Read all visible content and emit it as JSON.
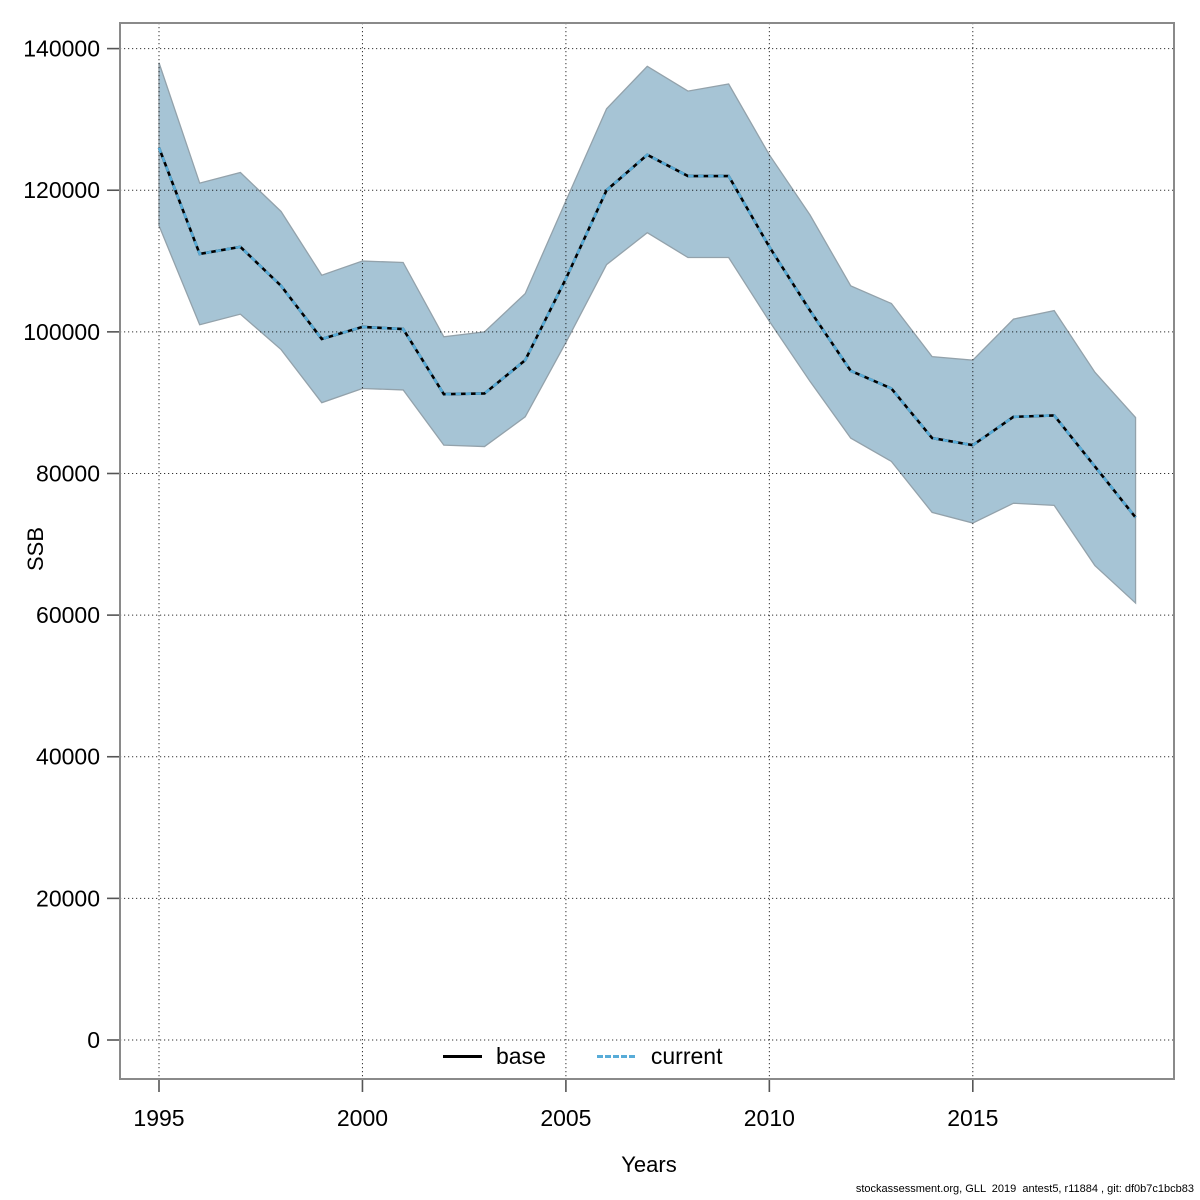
{
  "page": {
    "background": "#ffffff"
  },
  "axes": {
    "x_label": "Years",
    "y_label": "SSB"
  },
  "legend": {
    "items": [
      {
        "label": "base",
        "style": "solid",
        "color": "#000000"
      },
      {
        "label": "current",
        "style": "dotted",
        "color": "#58acd8"
      }
    ]
  },
  "footer": {
    "credit": "stockassessment.org, GLL  2019  antest5, r11884 , git: df0b7c1bcb83"
  },
  "chart_data": {
    "type": "line",
    "title": "",
    "xlabel": "Years",
    "ylabel": "SSB",
    "grid": "dotted",
    "legend_position": "bottom-center-inside",
    "xlim": [
      1994.05,
      2019.95
    ],
    "ylim": [
      -5500,
      143600
    ],
    "x": [
      1995,
      1996,
      1997,
      1998,
      1999,
      2000,
      2001,
      2002,
      2003,
      2004,
      2005,
      2006,
      2007,
      2008,
      2009,
      2010,
      2011,
      2012,
      2013,
      2014,
      2015,
      2016,
      2017,
      2018,
      2019
    ],
    "series": [
      {
        "name": "base",
        "style": "solid",
        "color": "#000000",
        "values": [
          126000,
          111000,
          112000,
          106500,
          99000,
          100700,
          100400,
          91200,
          91300,
          96000,
          107500,
          120000,
          125000,
          122000,
          122000,
          112000,
          103000,
          94500,
          92000,
          85000,
          84000,
          88000,
          88200,
          81000,
          73800
        ]
      },
      {
        "name": "current",
        "style": "dotted",
        "color": "#58acd8",
        "values": [
          126000,
          111000,
          112000,
          106500,
          99000,
          100700,
          100400,
          91200,
          91300,
          96000,
          107500,
          120000,
          125000,
          122000,
          122000,
          112000,
          103000,
          94500,
          92000,
          85000,
          84000,
          88000,
          88200,
          81000,
          73800
        ]
      }
    ],
    "band": {
      "name": "confidence-interval",
      "fill": "#a6c4d5",
      "border": "#93a2ab",
      "lower": [
        115000,
        101000,
        102500,
        97500,
        90000,
        92000,
        91800,
        84000,
        83800,
        88000,
        98500,
        109500,
        114000,
        110500,
        110500,
        101500,
        93000,
        85000,
        81700,
        74500,
        73000,
        75800,
        75500,
        67000,
        61700
      ],
      "upper": [
        138000,
        121000,
        122500,
        117000,
        108000,
        110000,
        109800,
        99300,
        100000,
        105400,
        118500,
        131500,
        137500,
        134000,
        135000,
        125000,
        116500,
        106500,
        104000,
        96500,
        96000,
        101800,
        103000,
        94300,
        87900
      ]
    },
    "x_ticks": {
      "values": [
        1995,
        2000,
        2005,
        2010,
        2015
      ],
      "labels": [
        "1995",
        "2000",
        "2005",
        "2010",
        "2015"
      ]
    },
    "y_ticks": {
      "values": [
        0,
        20000,
        40000,
        60000,
        80000,
        100000,
        120000,
        140000
      ],
      "labels": [
        "0",
        "20000",
        "40000",
        "60000",
        "80000",
        "100000",
        "120000",
        "140000"
      ]
    }
  }
}
